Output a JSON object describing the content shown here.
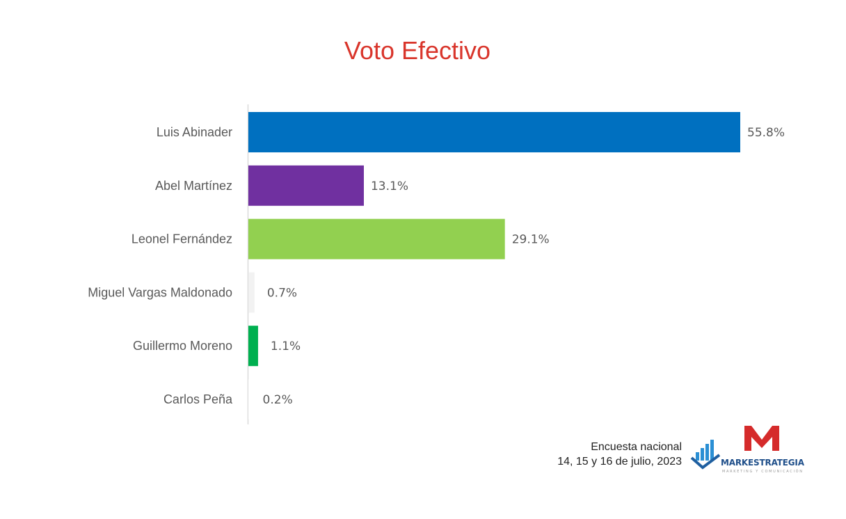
{
  "chart_data": {
    "type": "bar",
    "orientation": "horizontal",
    "title": "Voto Efectivo",
    "categories": [
      "Luis Abinader",
      "Abel Martínez",
      "Leonel Fernández",
      "Miguel Vargas Maldonado",
      "Guillermo Moreno",
      "Carlos Peña"
    ],
    "values": [
      55.8,
      13.1,
      29.1,
      0.7,
      1.1,
      0.2
    ],
    "value_labels": [
      "55.8%",
      "13.1%",
      "29.1%",
      "0.7%",
      "1.1%",
      "0.2%"
    ],
    "colors": [
      "#0070c0",
      "#7030a0",
      "#92d050",
      "#f2f2f2",
      "#00b050",
      "#ffffff"
    ],
    "xlabel": "",
    "ylabel": "",
    "xlim": [
      0,
      56
    ],
    "grid": false,
    "legend": "none"
  },
  "footer": {
    "source_line1": "Encuesta nacional",
    "source_line2": "14, 15 y 16 de julio, 2023",
    "logo_text": "MARKESTRATEGIA",
    "logo_subtext": "MARKETING Y COMUNICACIÓN"
  }
}
